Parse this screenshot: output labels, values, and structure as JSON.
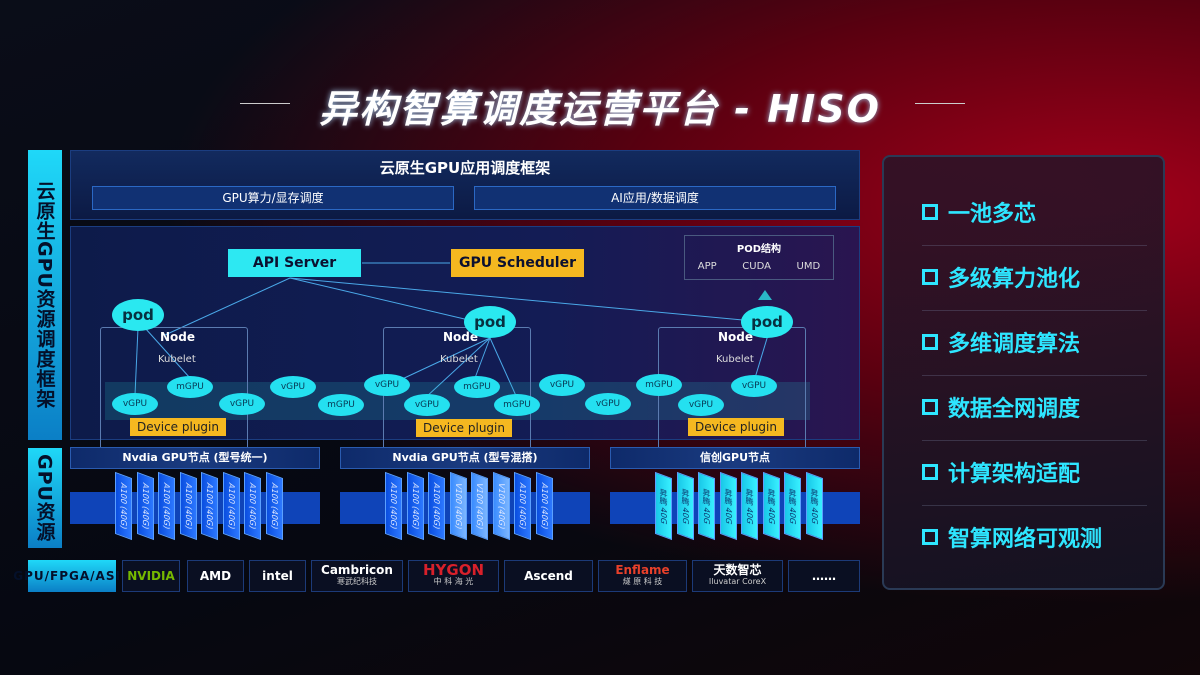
{
  "title": "异构智算调度运营平台 - HISO",
  "left_labels": {
    "framework": "云原生GPU资源调度框架",
    "resources": "GPU资源",
    "hardware": "GPU/FPGA/ASIC"
  },
  "framework": {
    "title": "云原生GPU应用调度框架",
    "sub": [
      "GPU算力/显存调度",
      "AI应用/数据调度"
    ]
  },
  "k8s": {
    "api_server": "API Server",
    "gpu_scheduler": "GPU Scheduler",
    "pod_struct": {
      "title": "POD结构",
      "items": [
        "APP",
        "CUDA",
        "UMD"
      ]
    },
    "pod": "pod",
    "node": "Node",
    "kubelet": "Kubelet",
    "device_plugin": "Device plugin",
    "gpus": [
      "vGPU",
      "mGPU",
      "vGPU",
      "vGPU",
      "mGPU",
      "vGPU",
      "mGPU",
      "vGPU",
      "mGPU",
      "vGPU",
      "vGPU",
      "mGPU",
      "vGPU",
      "vGPU"
    ]
  },
  "gpu_nodes": [
    {
      "title": "Nvdia GPU节点 (型号统一)",
      "chips": [
        "A100 (40G)",
        "A100 (40G)",
        "A100 (40G)",
        "A100 (40G)",
        "A100 (40G)",
        "A100 (40G)",
        "A100 (40G)",
        "A100 (40G)"
      ]
    },
    {
      "title": "Nvdia GPU节点 (型号混搭)",
      "chips": [
        "A100 (40G)",
        "A100 (40G)",
        "A100 (40G)",
        "V100 (40G)",
        "V100 (40G)",
        "V100 (40G)",
        "A100 (40G)",
        "A100 (40G)"
      ]
    },
    {
      "title": "信创GPU节点",
      "chips": [
        "昇腾 40G",
        "昇腾 40G",
        "昇腾 40G",
        "昇腾 40G",
        "昇腾 40G",
        "昇腾 40G",
        "昇腾 40G",
        "昇腾 40G"
      ]
    }
  ],
  "vendors": [
    [
      "NVIDIA",
      ""
    ],
    [
      "AMD",
      ""
    ],
    [
      "intel",
      ""
    ],
    [
      "Cambricon",
      "寒武纪科技"
    ],
    [
      "HYGON",
      "中 科 海 光"
    ],
    [
      "Ascend",
      ""
    ],
    [
      "Enflame",
      "燧 原 科 技"
    ],
    [
      "天数智芯",
      "Iluvatar CoreX"
    ],
    [
      "……",
      ""
    ]
  ],
  "features": [
    "一池多芯",
    "多级算力池化",
    "多维调度算法",
    "数据全网调度",
    "计算架构适配",
    "智算网络可观测"
  ],
  "colors": {
    "accent": "#2ee6ff",
    "scheduler": "#f5b820",
    "chip": "#1a5ef0"
  }
}
